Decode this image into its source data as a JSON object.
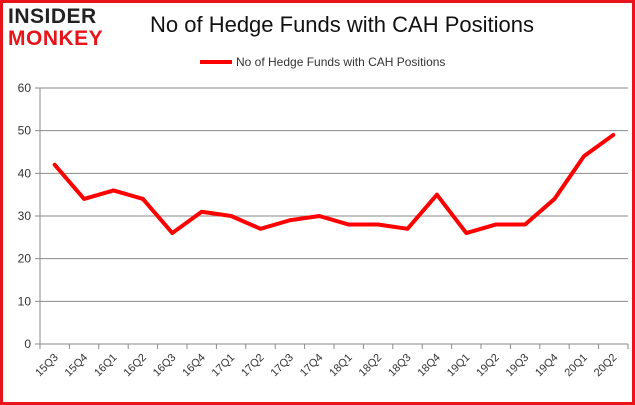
{
  "logo": {
    "line1": "INSIDER",
    "line2": "MONKEY"
  },
  "chart_data": {
    "type": "line",
    "title": "No of Hedge Funds with CAH Positions",
    "categories": [
      "15Q3",
      "15Q4",
      "16Q1",
      "16Q2",
      "16Q3",
      "16Q4",
      "17Q1",
      "17Q2",
      "17Q3",
      "17Q4",
      "18Q1",
      "18Q2",
      "18Q3",
      "18Q4",
      "19Q1",
      "19Q2",
      "19Q3",
      "19Q4",
      "20Q1",
      "20Q2"
    ],
    "series": [
      {
        "name": "No of Hedge Funds with CAH Positions",
        "color": "#ff0000",
        "values": [
          42,
          34,
          36,
          34,
          26,
          31,
          30,
          27,
          29,
          30,
          28,
          28,
          27,
          35,
          26,
          28,
          28,
          34,
          44,
          49
        ]
      }
    ],
    "ylim": [
      0,
      60
    ],
    "yticks": [
      0,
      10,
      20,
      30,
      40,
      50,
      60
    ],
    "grid": true,
    "legend": "top-center"
  }
}
